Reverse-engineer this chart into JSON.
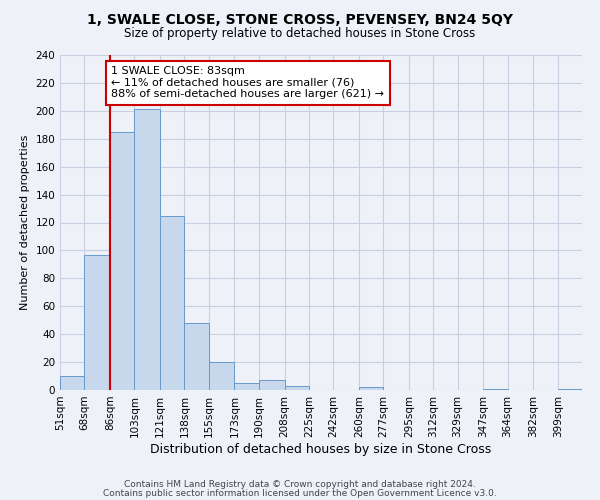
{
  "title": "1, SWALE CLOSE, STONE CROSS, PEVENSEY, BN24 5QY",
  "subtitle": "Size of property relative to detached houses in Stone Cross",
  "xlabel": "Distribution of detached houses by size in Stone Cross",
  "ylabel": "Number of detached properties",
  "bin_labels": [
    "51sqm",
    "68sqm",
    "86sqm",
    "103sqm",
    "121sqm",
    "138sqm",
    "155sqm",
    "173sqm",
    "190sqm",
    "208sqm",
    "225sqm",
    "242sqm",
    "260sqm",
    "277sqm",
    "295sqm",
    "312sqm",
    "329sqm",
    "347sqm",
    "364sqm",
    "382sqm",
    "399sqm"
  ],
  "bar_heights": [
    10,
    97,
    185,
    201,
    125,
    48,
    20,
    5,
    7,
    3,
    0,
    0,
    2,
    0,
    0,
    0,
    0,
    1,
    0,
    0,
    1
  ],
  "bar_color": "#c8d8ec",
  "bar_edge_color": "#6699cc",
  "property_line_x_label": "86sqm",
  "property_line_color": "#cc0000",
  "annotation_line1": "1 SWALE CLOSE: 83sqm",
  "annotation_line2": "← 11% of detached houses are smaller (76)",
  "annotation_line3": "88% of semi-detached houses are larger (621) →",
  "annotation_box_color": "#ffffff",
  "annotation_box_edge": "#cc0000",
  "ylim": [
    0,
    240
  ],
  "yticks": [
    0,
    20,
    40,
    60,
    80,
    100,
    120,
    140,
    160,
    180,
    200,
    220,
    240
  ],
  "footer1": "Contains HM Land Registry data © Crown copyright and database right 2024.",
  "footer2": "Contains public sector information licensed under the Open Government Licence v3.0.",
  "background_color": "#eef2f8",
  "plot_bg_color": "#eef2f8",
  "grid_color": "#c8cfe0",
  "title_fontsize": 10,
  "subtitle_fontsize": 8.5,
  "xlabel_fontsize": 9,
  "ylabel_fontsize": 8,
  "tick_fontsize": 7.5,
  "footer_fontsize": 6.5,
  "annotation_fontsize": 8
}
